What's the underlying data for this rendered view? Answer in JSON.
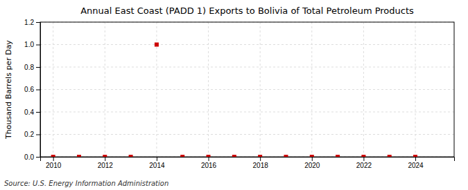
{
  "chart_data": {
    "type": "scatter",
    "title": "Annual East Coast (PADD 1) Exports to Bolivia of Total Petroleum Products",
    "y_label": "Thousand Barrels per Day",
    "annotations": [
      "Source: U.S. Energy Information Administration"
    ],
    "x": [
      2010,
      2011,
      2012,
      2013,
      2014,
      2015,
      2016,
      2017,
      2018,
      2019,
      2020,
      2021,
      2022,
      2023,
      2024
    ],
    "values": [
      0.0,
      0.0,
      0.0,
      0.0,
      1.0,
      0.0,
      0.0,
      0.0,
      0.0,
      0.0,
      0.0,
      0.0,
      0.0,
      0.0,
      0.0
    ],
    "color": "#CC0000",
    "marker": "square",
    "xlim": [
      2009.5,
      2025.5
    ],
    "ylim": [
      0.0,
      1.2
    ],
    "xticks": [
      2010,
      2012,
      2014,
      2016,
      2018,
      2020,
      2022,
      2024
    ],
    "yticks": [
      {
        "value": 0,
        "label": "0.0"
      },
      0.2,
      0.4,
      0.6,
      0.8,
      {
        "value": 1,
        "label": "1.0"
      },
      1.2
    ],
    "grid": true
  }
}
